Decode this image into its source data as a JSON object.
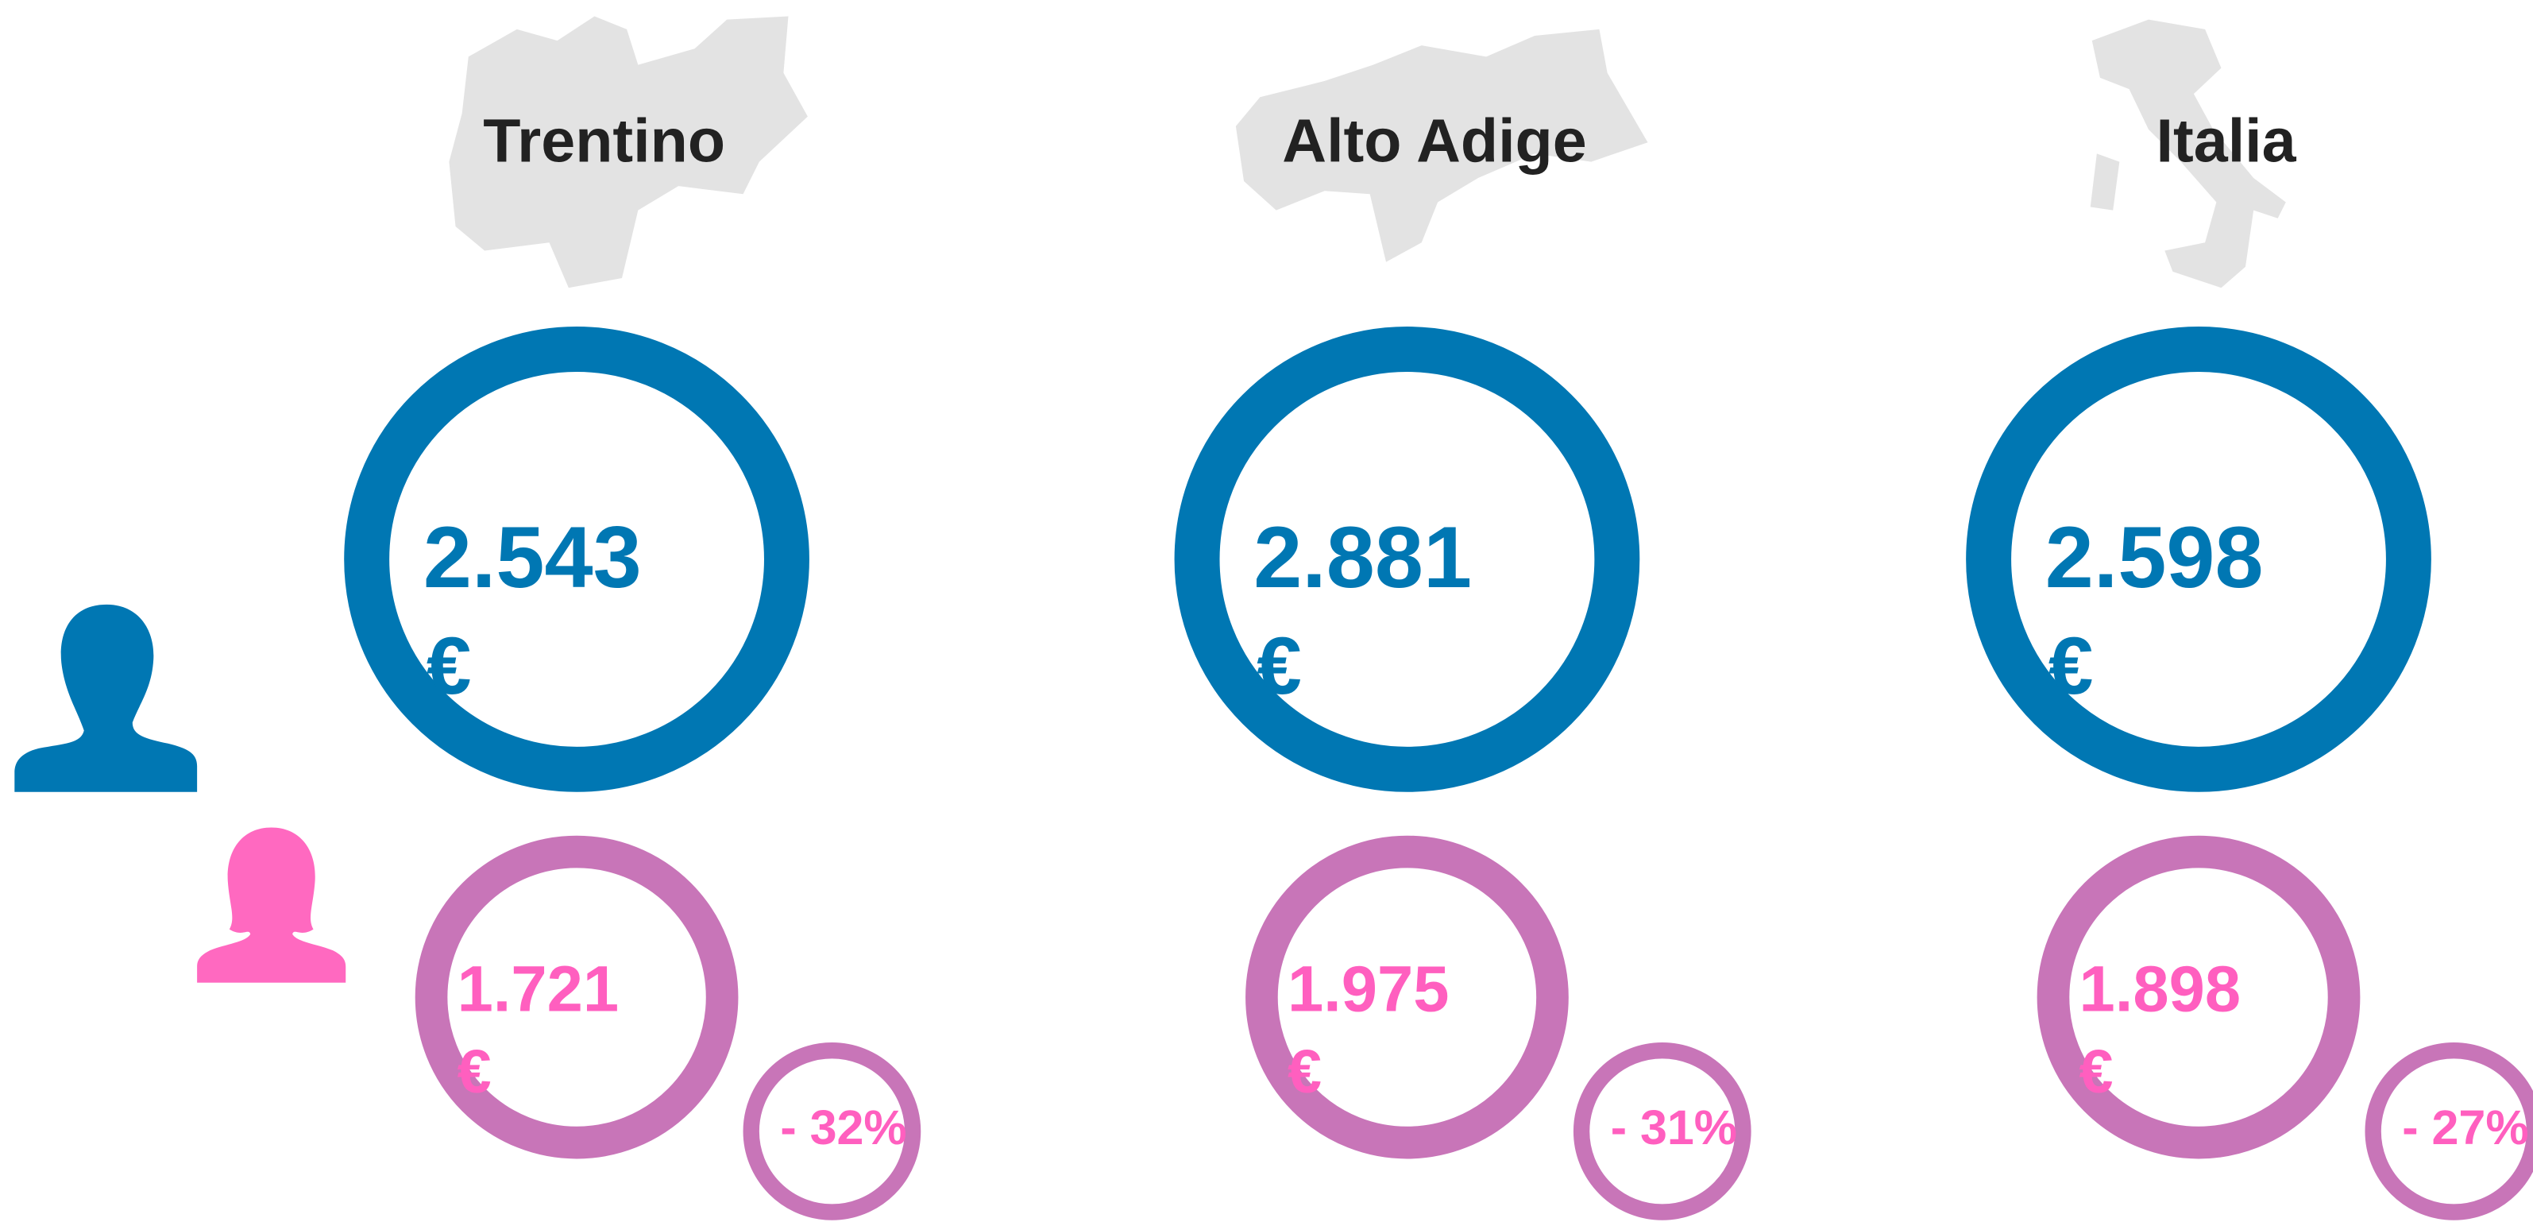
{
  "regions": [
    {
      "name": "Trentino",
      "male": "2.543",
      "female": "1.721",
      "gap": "- 32%"
    },
    {
      "name": "Alto Adige",
      "male": "2.881",
      "female": "1.975",
      "gap": "- 31%"
    },
    {
      "name": "Italia",
      "male": "2.598",
      "female": "1.898",
      "gap": "- 27%"
    }
  ],
  "currency": "€"
}
